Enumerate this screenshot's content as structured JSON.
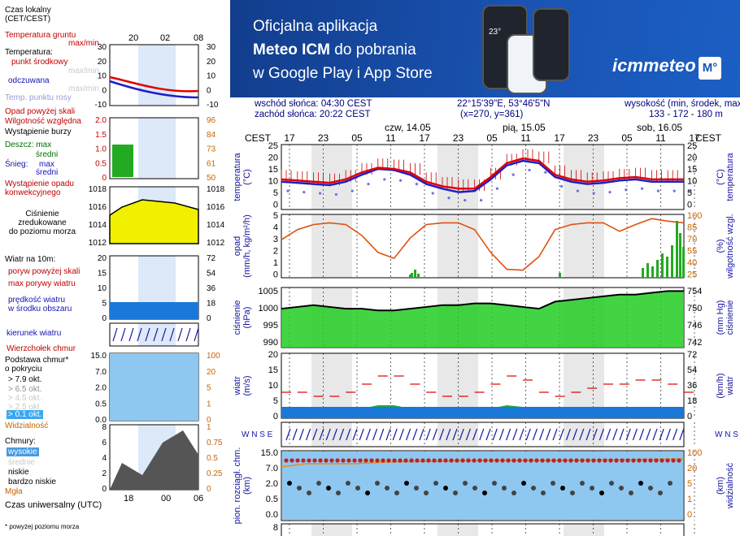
{
  "banner": {
    "line1": "Oficjalna aplikacja",
    "line2a": "Meteo ICM",
    "line2b": " do pobrania",
    "line3": "w Google Play i App Store",
    "logo": "icmmeteo",
    "logo_badge": "M°",
    "phone_temp": "23°"
  },
  "header": {
    "sunrise": "wschód słońca: 04:30 CEST",
    "sunset": "zachód słońca: 20:22 CEST",
    "coords": "22°15'39\"E, 53°46'5\"N",
    "grid": "(x=270,  y=361)",
    "elev_label": "wysokość (min, środek, max)",
    "elev_value": "133 - 172 - 180 m"
  },
  "time_axis": {
    "tz_left": "CEST",
    "tz_right": "CEST",
    "hours": [
      "17",
      "23",
      "05",
      "11",
      "17",
      "23",
      "05",
      "11",
      "17",
      "23",
      "05",
      "11",
      "17"
    ],
    "days": [
      "czw, 14.05",
      "pią, 15.05",
      "sob, 16.05"
    ],
    "legend_local": "Czas lokalny\n(CET/CEST)",
    "legend_hours": [
      "20",
      "02",
      "08"
    ],
    "legend_utc": "Czas uniwersalny (UTC)",
    "legend_utc_hours": [
      "18",
      "00",
      "06"
    ]
  },
  "legend": {
    "temp_ground": "Temperatura gruntu",
    "temp_ground_mm": "max/min",
    "temp": "Temperatura:",
    "dew_mid": "punkt środkowy",
    "max_min_1": "max/min",
    "feels": "odczuwana",
    "max_min_2": "max/min",
    "dewpoint": "Temp. punktu rosy",
    "precip_over": "Opad powyżej skali",
    "humidity": "Wilgotność względna",
    "storm": "Wystąpienie burzy",
    "snowrain_rain": "Deszcz: max",
    "rain_mid": "średni",
    "snow": "Śnieg:",
    "snow_max": "max",
    "snow_mid": "średni",
    "conv": "Wystąpienie opadu\nkonwekcyjnego",
    "pressure": "Ciśnienie\nzredukowane\ndo poziomu morza",
    "wind10": "Wiatr na 10m:",
    "gust_over": "poryw powyżej skali",
    "gust_max": "max porywy wiatru",
    "wind_avg": "prędkość wiatru\nw środku obszaru",
    "wind_dir": "kierunek wiatru",
    "cloud_top": "Wierzchołek chmur",
    "cloud_base": "Podstawa chmur*\no pokryciu",
    "okt79": "> 7.9 okt.",
    "okt65": "> 6.5 okt.",
    "okt45": "> 4.5 okt.",
    "okt25": "> 2.5 okt.",
    "okt01": "> 0.1 okt.",
    "visibility": "Widzialność",
    "clouds": "Chmury:",
    "high": "wysokie",
    "mid": "średnie",
    "low": "niskie",
    "vlow": "bardzo niskie",
    "fog": "Mgła",
    "footnote": "* powyżej poziomu morza"
  },
  "axes": {
    "temp_left": "temperatura\n(°C)",
    "temp_right": "(°C)\ntemperatura",
    "precip_left": "opad\n(mm/h, kg/m²/h)",
    "precip_right": "(%)\nwilgotność wzgl.",
    "press_left": "ciśnienie\n(hPa)",
    "press_right": "(mm Hg)\nciśnienie",
    "wind_left": "wiatr\n(m/s)",
    "wind_right": "(km/h)\nwiatr",
    "cloud_left": "pion. rozciągł. chm.\n(km)",
    "cloud_right": "(km)\nwidzialność",
    "wdir_left": "W N\nS E",
    "wdir_right": "W N\nS E",
    "temp_ticks": [
      "25",
      "20",
      "15",
      "10",
      "5",
      "0"
    ],
    "temp_ticks_r": [
      "25",
      "20",
      "15",
      "10",
      "5",
      "0"
    ],
    "precip_ticks": [
      "5",
      "4",
      "3",
      "2",
      "1",
      "0"
    ],
    "hum_ticks": [
      "100",
      "85",
      "70",
      "55",
      "40",
      "25"
    ],
    "press_ticks": [
      "1005",
      "1000",
      "995",
      "990"
    ],
    "press_ticks_r": [
      "754",
      "750",
      "746",
      "742"
    ],
    "wind_ticks": [
      "20",
      "15",
      "10",
      "5",
      "0"
    ],
    "wind_ticks_r": [
      "72",
      "54",
      "36",
      "18",
      "0"
    ],
    "cloud_ticks": [
      "15.0",
      "7.0",
      "2.0",
      "0.5",
      "0.0"
    ],
    "vis_ticks": [
      "100",
      "20",
      "5",
      "1",
      "0"
    ],
    "last_tick": "8"
  },
  "legend_ticks": {
    "temp_l": [
      "30",
      "20",
      "10",
      "0",
      "-10"
    ],
    "temp_r": [
      "30",
      "20",
      "10",
      "0",
      "-10"
    ],
    "pr_l": [
      "2.0",
      "1.5",
      "1.0",
      "0.5",
      "0"
    ],
    "pr_r": [
      "96",
      "84",
      "73",
      "61",
      "50"
    ],
    "ps_l": [
      "1018",
      "1016",
      "1014",
      "1012"
    ],
    "ps_r": [
      "1018",
      "1016",
      "1014",
      "1012"
    ],
    "w_l": [
      "20",
      "15",
      "10",
      "5",
      "0"
    ],
    "w_r": [
      "72",
      "54",
      "36",
      "18",
      "0"
    ],
    "c_l": [
      "15.0",
      "7.0",
      "2.0",
      "0.5",
      "0.0"
    ],
    "c_r": [
      "100",
      "20",
      "5",
      "1",
      "0"
    ],
    "cl_l": [
      "8",
      "6",
      "4",
      "2",
      "0"
    ],
    "cl_r": [
      "1",
      "0.75",
      "0.5",
      "0.25",
      "0"
    ]
  },
  "colors": {
    "temp": "#e00000",
    "feels": "#1e1ec8",
    "dew": "#7070e0",
    "humidity": "#e05010",
    "pressure_fill": "#22cc22",
    "wind_fill": "#1a78d8",
    "cloud_bg": "#8ec8f0",
    "night": "#d8d8d8"
  },
  "chart_data": {
    "type": "line",
    "title": "",
    "x_hours": [
      17,
      20,
      23,
      2,
      5,
      8,
      11,
      14,
      17,
      20,
      23,
      2,
      5,
      8,
      11,
      14,
      17,
      20,
      23,
      2,
      5,
      8,
      11,
      14,
      17,
      20
    ],
    "series": [
      {
        "name": "odczuwana",
        "values": [
          10,
          9.5,
          9,
          8.5,
          10,
          13,
          15.5,
          15,
          13,
          9,
          7,
          5.5,
          6,
          11,
          17,
          19,
          18,
          12,
          10,
          9,
          9.5,
          10.5,
          11,
          10,
          10,
          10
        ]
      },
      {
        "name": "temperatura",
        "values": [
          11,
          10.5,
          10,
          9.5,
          11,
          14,
          16,
          15.5,
          14,
          10,
          8,
          7,
          7,
          12,
          18,
          20,
          19,
          13,
          11,
          10,
          10.5,
          11.5,
          12,
          11,
          11,
          11
        ]
      },
      {
        "name": "wilgotność",
        "values": [
          70,
          82,
          88,
          90,
          88,
          75,
          55,
          48,
          72,
          88,
          90,
          90,
          82,
          55,
          35,
          34,
          50,
          82,
          88,
          90,
          90,
          80,
          88,
          95,
          92,
          90
        ]
      },
      {
        "name": "ciśnienie",
        "values": [
          1001,
          1001.5,
          1002,
          1001.5,
          1001,
          1001,
          1000.5,
          1000.5,
          1001,
          1001.5,
          1002,
          1002,
          1002.5,
          1002.5,
          1002,
          1001.5,
          1001,
          1003,
          1003.5,
          1004,
          1004.5,
          1005,
          1005,
          1005.5,
          1006,
          1006
        ]
      },
      {
        "name": "prędkość wiatru",
        "values": [
          2,
          2,
          1.5,
          1.5,
          2,
          3,
          4,
          4,
          3,
          2,
          1.5,
          1.5,
          2,
          3,
          4,
          3.5,
          2,
          1.5,
          2,
          2.5,
          3,
          3,
          3.5,
          3.5,
          3,
          2
        ]
      }
    ],
    "xlabel": "",
    "ylabel": ""
  }
}
